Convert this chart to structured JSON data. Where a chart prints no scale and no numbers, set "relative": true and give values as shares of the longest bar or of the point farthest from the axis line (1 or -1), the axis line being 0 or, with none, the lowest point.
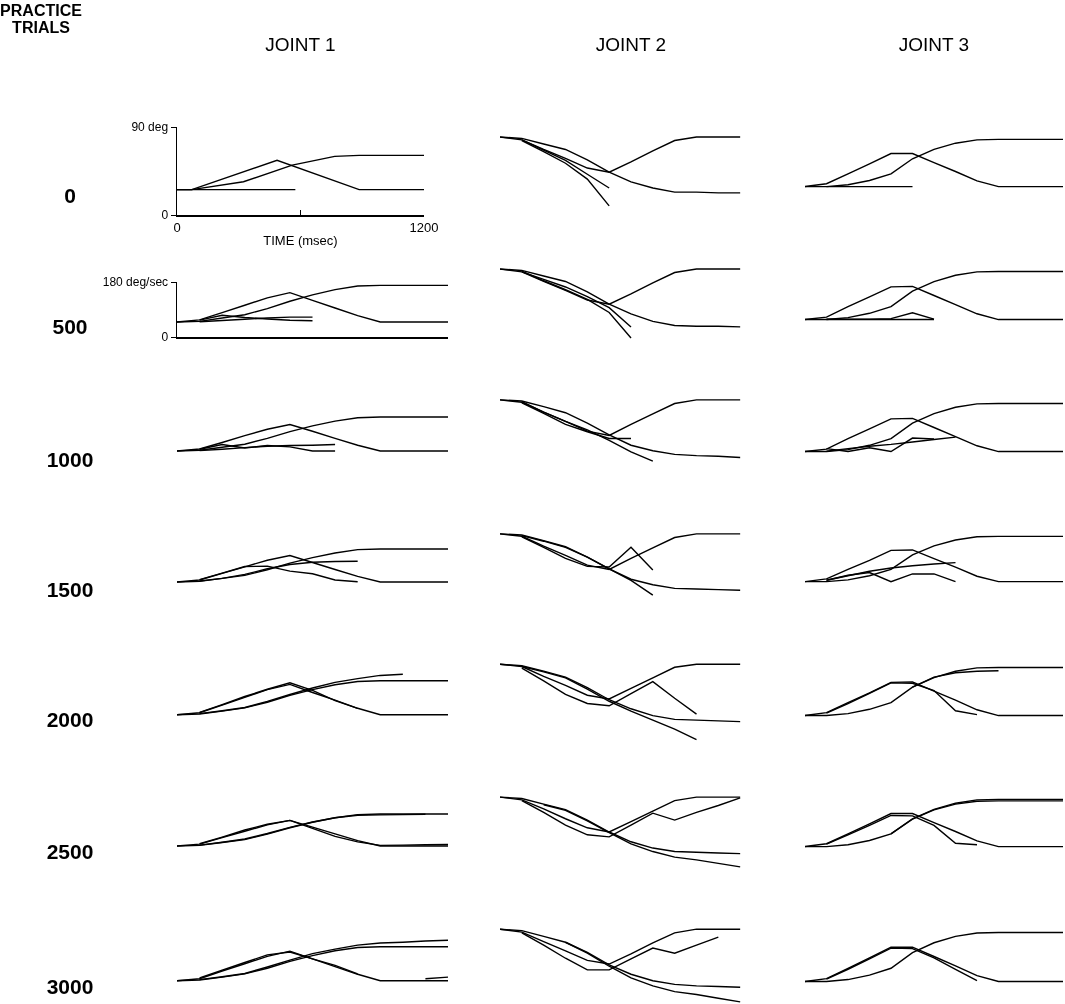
{
  "chart_data": [
    {
      "type": "line",
      "title": "JOINT 1",
      "ylabel": "0",
      "annotations": [
        "PRACTICE TRIALS"
      ],
      "xlabel": "TIME (msec)",
      "xlim": [
        0,
        1200
      ],
      "xticks": [
        0,
        {
          "value": 600,
          "label": null
        },
        1200
      ],
      "ylim": [
        0,
        90
      ],
      "yticks": [
        0,
        {
          "value": 90,
          "label": "90 deg"
        }
      ],
      "series": [
        {
          "color": "#000000",
          "x": [
            0,
            72,
            486,
            885,
            1200
          ],
          "values": [
            26,
            26,
            56,
            26,
            26
          ]
        },
        {
          "color": "#000000",
          "x": [
            0,
            72,
            323,
            560,
            766,
            885,
            1200
          ],
          "values": [
            26,
            26,
            34,
            51,
            60,
            61,
            61
          ]
        },
        {
          "color": "#000000",
          "x": [
            0,
            575
          ],
          "values": [
            26,
            26
          ]
        }
      ]
    },
    {
      "type": "line",
      "title": "JOINT 2",
      "relative": true,
      "tick_labels": false,
      "categories": [
        null,
        null,
        null,
        null,
        null,
        null,
        null,
        null,
        null,
        null,
        null,
        null,
        null
      ],
      "series": [
        {
          "color": "#000000",
          "values": [
            1,
            0.96,
            0.82,
            0.69,
            0.55,
            0.49,
            0.64,
            0.8,
            0.95,
            1,
            1,
            1,
            null
          ]
        },
        {
          "color": "#000000",
          "values": [
            1,
            0.98,
            0.9,
            0.82,
            0.67,
            0.49,
            0.35,
            0.26,
            0.2,
            0.2,
            0.19,
            0.19,
            null
          ]
        },
        {
          "color": "#000000",
          "values": [
            null,
            0.96,
            0.81,
            0.66,
            0.46,
            0.26,
            null,
            null,
            null,
            null,
            null,
            null,
            null
          ]
        },
        {
          "color": "#000000",
          "values": [
            null,
            0.95,
            0.79,
            0.62,
            0.39,
            0,
            null,
            null,
            null,
            null,
            null,
            null,
            null
          ]
        }
      ]
    },
    {
      "type": "line",
      "title": "JOINT 3",
      "relative": true,
      "tick_labels": false,
      "categories": [
        null,
        null,
        null,
        null,
        null,
        null,
        null,
        null,
        null,
        null,
        null,
        null,
        null
      ],
      "series": [
        {
          "color": "#000000",
          "values": [
            0,
            0.06,
            0.27,
            0.48,
            0.7,
            0.7,
            0.51,
            0.32,
            0.12,
            0,
            0,
            0,
            0
          ]
        },
        {
          "color": "#000000",
          "values": [
            0,
            0,
            0.04,
            0.13,
            0.27,
            0.59,
            0.79,
            0.92,
            0.99,
            1,
            1,
            1,
            1
          ]
        },
        {
          "color": "#000000",
          "values": [
            null,
            0,
            0,
            0,
            0,
            0,
            null,
            null,
            null,
            null,
            null,
            null,
            null
          ]
        }
      ]
    },
    {
      "type": "line",
      "ylabel": "500",
      "tick_labels": "y",
      "categories": [
        null,
        null,
        null,
        null,
        null,
        null,
        null,
        null,
        null,
        null,
        null,
        null,
        null
      ],
      "ylim": [
        0,
        180
      ],
      "yticks": [
        0,
        {
          "value": 180,
          "label": "180 deg/sec"
        }
      ],
      "series": [
        {
          "color": "#000000",
          "values": [
            49,
            56,
            80,
            104,
            128,
            145,
            120,
            95,
            70,
            49,
            49,
            49,
            49
          ]
        },
        {
          "color": "#000000",
          "values": [
            49,
            51,
            62,
            73,
            93,
            117,
            138,
            155,
            167,
            169,
            169,
            169,
            169
          ]
        },
        {
          "color": "#000000",
          "values": [
            null,
            55,
            71,
            64,
            59,
            55,
            53,
            null,
            null,
            null,
            null,
            null,
            null
          ]
        },
        {
          "color": "#000000",
          "values": [
            null,
            50,
            54,
            58,
            62,
            65,
            65,
            null,
            null,
            null,
            null,
            null,
            null
          ]
        }
      ]
    },
    {
      "type": "line",
      "relative": true,
      "tick_labels": false,
      "categories": [
        null,
        null,
        null,
        null,
        null,
        null,
        null,
        null,
        null,
        null,
        null,
        null,
        null
      ],
      "series": [
        {
          "color": "#000000",
          "values": [
            1,
            0.96,
            0.82,
            0.69,
            0.55,
            0.49,
            0.64,
            0.8,
            0.95,
            1,
            1,
            1,
            null
          ]
        },
        {
          "color": "#000000",
          "values": [
            1,
            0.98,
            0.9,
            0.82,
            0.67,
            0.49,
            0.35,
            0.24,
            0.18,
            0.17,
            0.17,
            0.16,
            null
          ]
        },
        {
          "color": "#000000",
          "values": [
            null,
            0.97,
            0.83,
            0.7,
            0.56,
            0.37,
            0,
            null,
            null,
            null,
            null,
            null,
            null
          ]
        },
        {
          "color": "#000000",
          "values": [
            null,
            0.96,
            0.85,
            0.74,
            0.6,
            0.44,
            0.16,
            null,
            null,
            null,
            null,
            null,
            null
          ]
        }
      ]
    },
    {
      "type": "line",
      "relative": true,
      "tick_labels": false,
      "categories": [
        null,
        null,
        null,
        null,
        null,
        null,
        null,
        null,
        null,
        null,
        null,
        null,
        null
      ],
      "series": [
        {
          "color": "#000000",
          "values": [
            0,
            0.05,
            0.27,
            0.47,
            0.68,
            0.69,
            0.5,
            0.31,
            0.12,
            0,
            0,
            0,
            0
          ]
        },
        {
          "color": "#000000",
          "values": [
            0,
            0,
            0.04,
            0.13,
            0.27,
            0.59,
            0.79,
            0.92,
            0.99,
            1,
            1,
            1,
            1
          ]
        },
        {
          "color": "#000000",
          "values": [
            null,
            0.01,
            0.01,
            0.01,
            0.02,
            0.14,
            0.01,
            null,
            null,
            null,
            null,
            null,
            null
          ]
        },
        {
          "color": "#000000",
          "values": [
            null,
            0,
            0,
            0,
            0,
            0,
            0,
            null,
            null,
            null,
            null,
            null,
            null
          ]
        }
      ]
    },
    {
      "type": "line",
      "ylabel": "1000",
      "relative": true,
      "tick_labels": false,
      "categories": [
        null,
        null,
        null,
        null,
        null,
        null,
        null,
        null,
        null,
        null,
        null,
        null,
        null
      ],
      "series": [
        {
          "color": "#000000",
          "values": [
            0,
            0.06,
            0.25,
            0.45,
            0.64,
            0.78,
            0.58,
            0.37,
            0.17,
            0,
            0,
            0,
            0
          ]
        },
        {
          "color": "#000000",
          "values": [
            0,
            0.02,
            0.11,
            0.2,
            0.37,
            0.57,
            0.74,
            0.88,
            0.98,
            1,
            1,
            1,
            1
          ]
        },
        {
          "color": "#000000",
          "values": [
            null,
            0.05,
            0.19,
            0.09,
            0.16,
            0.12,
            0,
            0,
            null,
            null,
            null,
            null,
            null
          ]
        },
        {
          "color": "#000000",
          "values": [
            null,
            0.01,
            0.05,
            0.1,
            0.14,
            0.16,
            0.17,
            0.19,
            null,
            null,
            null,
            null,
            null
          ]
        }
      ]
    },
    {
      "type": "line",
      "relative": true,
      "tick_labels": false,
      "categories": [
        null,
        null,
        null,
        null,
        null,
        null,
        null,
        null,
        null,
        null,
        null,
        null,
        null
      ],
      "series": [
        {
          "color": "#000000",
          "values": [
            1,
            0.96,
            0.8,
            0.65,
            0.49,
            0.42,
            0.6,
            0.77,
            0.94,
            1,
            1,
            1,
            null
          ]
        },
        {
          "color": "#000000",
          "values": [
            1,
            0.98,
            0.89,
            0.79,
            0.62,
            0.43,
            0.26,
            0.17,
            0.11,
            0.09,
            0.08,
            0.06,
            null
          ]
        },
        {
          "color": "#000000",
          "values": [
            null,
            0.95,
            0.78,
            0.6,
            0.48,
            0.37,
            0.37,
            null,
            null,
            null,
            null,
            null,
            null
          ]
        },
        {
          "color": "#000000",
          "values": [
            null,
            0.97,
            0.8,
            0.65,
            0.51,
            0.34,
            0.15,
            0,
            null,
            null,
            null,
            null,
            null
          ]
        }
      ]
    },
    {
      "type": "line",
      "relative": true,
      "tick_labels": false,
      "categories": [
        null,
        null,
        null,
        null,
        null,
        null,
        null,
        null,
        null,
        null,
        null,
        null,
        null
      ],
      "series": [
        {
          "color": "#000000",
          "values": [
            0,
            0.05,
            0.27,
            0.47,
            0.68,
            0.69,
            0.5,
            0.31,
            0.12,
            0,
            0,
            0,
            0
          ]
        },
        {
          "color": "#000000",
          "values": [
            0,
            0,
            0.04,
            0.13,
            0.27,
            0.59,
            0.79,
            0.92,
            0.99,
            1,
            1,
            1,
            1
          ]
        },
        {
          "color": "#000000",
          "values": [
            null,
            0.06,
            0,
            0.08,
            0,
            0.28,
            0.26,
            null,
            null,
            null,
            null,
            null,
            null
          ]
        },
        {
          "color": "#000000",
          "values": [
            null,
            0.01,
            0.06,
            0.11,
            0.15,
            0.2,
            0.25,
            0.3,
            null,
            null,
            null,
            null,
            null
          ]
        }
      ]
    },
    {
      "type": "line",
      "ylabel": "1500",
      "relative": true,
      "tick_labels": false,
      "categories": [
        null,
        null,
        null,
        null,
        null,
        null,
        null,
        null,
        null,
        null,
        null,
        null,
        null
      ],
      "series": [
        {
          "color": "#000000",
          "values": [
            0,
            0.06,
            0.26,
            0.46,
            0.66,
            0.8,
            0.59,
            0.38,
            0.17,
            0,
            0,
            0,
            0
          ]
        },
        {
          "color": "#000000",
          "values": [
            0,
            0.02,
            0.11,
            0.2,
            0.37,
            0.57,
            0.74,
            0.88,
            0.98,
            1,
            1,
            1,
            1
          ]
        },
        {
          "color": "#000000",
          "values": [
            null,
            0.07,
            0.27,
            0.47,
            0.48,
            0.33,
            0.25,
            0.06,
            0.01,
            null,
            null,
            null,
            null
          ]
        },
        {
          "color": "#000000",
          "values": [
            null,
            0.03,
            0.11,
            0.23,
            0.4,
            0.53,
            0.6,
            0.62,
            0.63,
            null,
            null,
            null,
            null
          ]
        }
      ]
    },
    {
      "type": "line",
      "relative": true,
      "tick_labels": false,
      "categories": [
        null,
        null,
        null,
        null,
        null,
        null,
        null,
        null,
        null,
        null,
        null,
        null,
        null
      ],
      "series": [
        {
          "color": "#000000",
          "values": [
            1,
            0.96,
            0.8,
            0.65,
            0.49,
            0.42,
            0.6,
            0.77,
            0.94,
            1,
            1,
            1,
            null
          ]
        },
        {
          "color": "#000000",
          "values": [
            1,
            0.98,
            0.89,
            0.79,
            0.62,
            0.43,
            0.26,
            0.17,
            0.11,
            0.1,
            0.09,
            0.08,
            null
          ]
        },
        {
          "color": "#000000",
          "values": [
            null,
            0.95,
            0.78,
            0.6,
            0.47,
            0.46,
            0.78,
            0.41,
            null,
            null,
            null,
            null,
            null
          ]
        },
        {
          "color": "#000000",
          "values": [
            null,
            0.97,
            0.88,
            0.78,
            0.62,
            0.43,
            0.24,
            0,
            null,
            null,
            null,
            null,
            null
          ]
        }
      ]
    },
    {
      "type": "line",
      "relative": true,
      "tick_labels": false,
      "categories": [
        null,
        null,
        null,
        null,
        null,
        null,
        null,
        null,
        null,
        null,
        null,
        null,
        null
      ],
      "series": [
        {
          "color": "#000000",
          "values": [
            0,
            0.06,
            0.27,
            0.47,
            0.69,
            0.7,
            0.51,
            0.32,
            0.12,
            0,
            0,
            0,
            0
          ]
        },
        {
          "color": "#000000",
          "values": [
            0,
            0,
            0.04,
            0.13,
            0.27,
            0.59,
            0.79,
            0.92,
            0.99,
            1,
            1,
            1,
            1
          ]
        },
        {
          "color": "#000000",
          "values": [
            null,
            0.03,
            0.14,
            0.2,
            0,
            0.17,
            0.17,
            0,
            null,
            null,
            null,
            null,
            null
          ]
        },
        {
          "color": "#000000",
          "values": [
            null,
            0.03,
            0.13,
            0.23,
            0.3,
            0.35,
            0.39,
            0.42,
            null,
            null,
            null,
            null,
            null
          ]
        }
      ]
    },
    {
      "type": "line",
      "ylabel": "2000",
      "relative": true,
      "tick_labels": false,
      "categories": [
        null,
        null,
        null,
        null,
        null,
        null,
        null,
        null,
        null,
        null,
        null,
        null,
        null
      ],
      "series": [
        {
          "color": "#000000",
          "values": [
            0,
            0.05,
            0.24,
            0.43,
            0.62,
            0.75,
            0.55,
            0.36,
            0.16,
            0,
            0,
            0,
            0
          ]
        },
        {
          "color": "#000000",
          "values": [
            0,
            0.02,
            0.09,
            0.17,
            0.31,
            0.48,
            0.62,
            0.74,
            0.82,
            0.84,
            0.84,
            0.84,
            0.84
          ]
        },
        {
          "color": "#000000",
          "values": [
            null,
            0.06,
            0.25,
            0.45,
            0.63,
            0.79,
            0.6,
            0.35,
            0.16,
            null,
            null,
            null,
            null
          ]
        },
        {
          "color": "#000000",
          "values": [
            null,
            0.03,
            0.1,
            0.18,
            0.33,
            0.5,
            0.66,
            0.8,
            0.89,
            0.97,
            1,
            null,
            null
          ]
        }
      ]
    },
    {
      "type": "line",
      "relative": true,
      "tick_labels": false,
      "categories": [
        null,
        null,
        null,
        null,
        null,
        null,
        null,
        null,
        null,
        null,
        null,
        null,
        null
      ],
      "series": [
        {
          "color": "#000000",
          "values": [
            1,
            0.97,
            0.84,
            0.72,
            0.59,
            0.54,
            0.68,
            0.82,
            0.96,
            1,
            1,
            1,
            null
          ]
        },
        {
          "color": "#000000",
          "values": [
            1,
            0.98,
            0.91,
            0.83,
            0.69,
            0.53,
            0.41,
            0.32,
            0.27,
            0.26,
            0.25,
            0.24,
            null
          ]
        },
        {
          "color": "#000000",
          "values": [
            null,
            0.95,
            0.78,
            0.6,
            0.48,
            0.45,
            0.61,
            0.77,
            0.55,
            0.34,
            null,
            null,
            null
          ]
        },
        {
          "color": "#000000",
          "values": [
            null,
            0.97,
            0.9,
            0.82,
            0.67,
            0.51,
            0.38,
            0.26,
            0.14,
            0,
            null,
            null,
            null
          ]
        }
      ]
    },
    {
      "type": "line",
      "relative": true,
      "tick_labels": false,
      "categories": [
        null,
        null,
        null,
        null,
        null,
        null,
        null,
        null,
        null,
        null,
        null,
        null,
        null
      ],
      "series": [
        {
          "color": "#000000",
          "values": [
            0,
            0.06,
            0.27,
            0.47,
            0.69,
            0.7,
            0.51,
            0.32,
            0.12,
            0,
            0,
            0,
            0
          ]
        },
        {
          "color": "#000000",
          "values": [
            0,
            0,
            0.04,
            0.13,
            0.27,
            0.59,
            0.79,
            0.92,
            0.99,
            1,
            1,
            1,
            1
          ]
        },
        {
          "color": "#000000",
          "values": [
            null,
            0.05,
            0.25,
            0.46,
            0.68,
            0.67,
            0.52,
            0.1,
            0.02,
            null,
            null,
            null,
            null
          ]
        },
        {
          "color": "#000000",
          "values": [
            null,
            null,
            null,
            null,
            null,
            0.59,
            0.8,
            0.89,
            0.92,
            0.93,
            null,
            null,
            null
          ]
        }
      ]
    },
    {
      "type": "line",
      "ylabel": "2500",
      "relative": true,
      "tick_labels": false,
      "categories": [
        null,
        null,
        null,
        null,
        null,
        null,
        null,
        null,
        null,
        null,
        null,
        null,
        null
      ],
      "series": [
        {
          "color": "#000000",
          "values": [
            0,
            0.06,
            0.26,
            0.46,
            0.66,
            0.8,
            0.59,
            0.38,
            0.17,
            0,
            0,
            0,
            0
          ]
        },
        {
          "color": "#000000",
          "values": [
            0,
            0.02,
            0.11,
            0.2,
            0.37,
            0.57,
            0.74,
            0.88,
            0.98,
            1,
            1,
            1,
            1
          ]
        },
        {
          "color": "#000000",
          "values": [
            null,
            0.07,
            0.28,
            0.5,
            0.68,
            0.8,
            0.55,
            0.3,
            0.13,
            0.02,
            0.03,
            0.04,
            0.05
          ]
        },
        {
          "color": "#000000",
          "values": [
            null,
            0.03,
            0.12,
            0.22,
            0.39,
            0.58,
            0.75,
            0.88,
            0.96,
            0.97,
            0.98,
            0.99,
            null
          ]
        }
      ]
    },
    {
      "type": "line",
      "relative": true,
      "tick_labels": false,
      "categories": [
        null,
        null,
        null,
        null,
        null,
        null,
        null,
        null,
        null,
        null,
        null,
        null,
        null
      ],
      "series": [
        {
          "color": "#000000",
          "values": [
            1,
            0.96,
            0.83,
            0.69,
            0.56,
            0.5,
            0.65,
            0.8,
            0.95,
            1,
            1,
            1,
            null
          ]
        },
        {
          "color": "#000000",
          "values": [
            1,
            0.98,
            0.9,
            0.82,
            0.67,
            0.5,
            0.36,
            0.27,
            0.22,
            0.21,
            0.2,
            0.19,
            null
          ]
        },
        {
          "color": "#000000",
          "values": [
            null,
            0.95,
            0.78,
            0.6,
            0.46,
            0.43,
            0.6,
            0.77,
            0.67,
            0.78,
            0.88,
            0.99,
            null
          ]
        },
        {
          "color": "#000000",
          "values": [
            null,
            null,
            0.89,
            0.81,
            0.66,
            0.49,
            0.33,
            0.22,
            0.14,
            0.1,
            0.05,
            0,
            null
          ]
        }
      ]
    },
    {
      "type": "line",
      "relative": true,
      "tick_labels": false,
      "categories": [
        null,
        null,
        null,
        null,
        null,
        null,
        null,
        null,
        null,
        null,
        null,
        null,
        null
      ],
      "series": [
        {
          "color": "#000000",
          "values": [
            0,
            0.06,
            0.27,
            0.48,
            0.7,
            0.7,
            0.51,
            0.32,
            0.12,
            0,
            0,
            0,
            0
          ]
        },
        {
          "color": "#000000",
          "values": [
            0,
            0,
            0.04,
            0.13,
            0.27,
            0.59,
            0.79,
            0.92,
            0.99,
            1,
            1,
            1,
            1
          ]
        },
        {
          "color": "#000000",
          "values": [
            null,
            0.05,
            0.25,
            0.45,
            0.66,
            0.65,
            0.45,
            0.07,
            0.04,
            null,
            null,
            null,
            null
          ]
        },
        {
          "color": "#000000",
          "values": [
            null,
            null,
            null,
            null,
            0.27,
            0.58,
            0.78,
            0.9,
            0.96,
            0.97,
            0.97,
            0.97,
            0.97
          ]
        }
      ]
    },
    {
      "type": "line",
      "ylabel": "3000",
      "relative": true,
      "tick_labels": false,
      "categories": [
        null,
        null,
        null,
        null,
        null,
        null,
        null,
        null,
        null,
        null,
        null,
        null,
        null
      ],
      "series": [
        {
          "color": "#000000",
          "values": [
            0,
            0.05,
            0.24,
            0.42,
            0.6,
            0.73,
            0.54,
            0.35,
            0.16,
            0,
            0,
            0,
            0
          ]
        },
        {
          "color": "#000000",
          "values": [
            0,
            0.02,
            0.09,
            0.17,
            0.31,
            0.48,
            0.62,
            0.74,
            0.82,
            0.84,
            0.84,
            0.84,
            0.84
          ]
        },
        {
          "color": "#000000",
          "values": [
            null,
            0.07,
            0.26,
            0.45,
            0.64,
            0.71,
            0.54,
            0.38,
            0.17,
            null,
            null,
            0.05,
            0.09
          ]
        },
        {
          "color": "#000000",
          "values": [
            null,
            0.03,
            0.1,
            0.18,
            0.34,
            0.51,
            0.67,
            0.78,
            0.88,
            0.93,
            0.95,
            0.98,
            1
          ]
        }
      ]
    },
    {
      "type": "line",
      "relative": true,
      "tick_labels": false,
      "categories": [
        null,
        null,
        null,
        null,
        null,
        null,
        null,
        null,
        null,
        null,
        null,
        null,
        null
      ],
      "series": [
        {
          "color": "#000000",
          "values": [
            1,
            0.96,
            0.83,
            0.7,
            0.57,
            0.52,
            0.66,
            0.81,
            0.95,
            1,
            1,
            1,
            null
          ]
        },
        {
          "color": "#000000",
          "values": [
            1,
            0.98,
            0.9,
            0.82,
            0.68,
            0.51,
            0.38,
            0.29,
            0.24,
            0.22,
            0.21,
            0.2,
            null
          ]
        },
        {
          "color": "#000000",
          "values": [
            null,
            0.95,
            0.78,
            0.6,
            0.44,
            0.44,
            0.59,
            0.74,
            0.67,
            0.78,
            0.89,
            null,
            null
          ]
        },
        {
          "color": "#000000",
          "values": [
            null,
            null,
            null,
            0.82,
            0.67,
            0.49,
            0.33,
            0.22,
            0.14,
            0.1,
            0.05,
            0,
            null
          ]
        }
      ]
    },
    {
      "type": "line",
      "relative": true,
      "tick_labels": false,
      "categories": [
        null,
        null,
        null,
        null,
        null,
        null,
        null,
        null,
        null,
        null,
        null,
        null,
        null
      ],
      "series": [
        {
          "color": "#000000",
          "values": [
            0,
            0.06,
            0.27,
            0.48,
            0.7,
            0.7,
            0.51,
            0.32,
            0.12,
            0,
            0,
            0,
            0
          ]
        },
        {
          "color": "#000000",
          "values": [
            0,
            0,
            0.04,
            0.13,
            0.27,
            0.59,
            0.79,
            0.92,
            0.99,
            1,
            1,
            1,
            1
          ]
        },
        {
          "color": "#000000",
          "values": [
            null,
            0.05,
            0.25,
            0.46,
            0.68,
            0.67,
            0.48,
            0.25,
            0.02,
            null,
            null,
            null,
            null
          ]
        }
      ]
    }
  ]
}
